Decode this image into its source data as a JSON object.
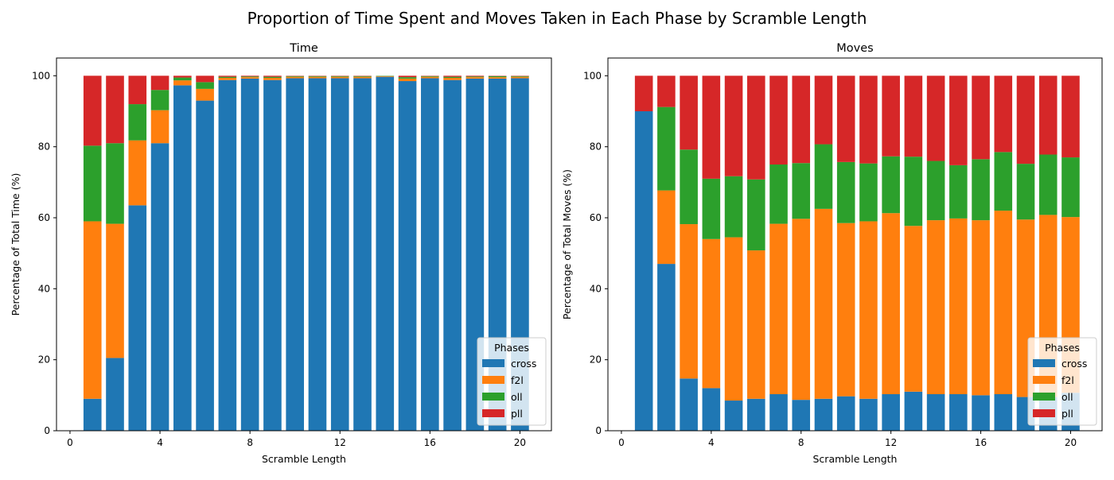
{
  "figure": {
    "title": "Proportion of Time Spent and Moves Taken in Each Phase by Scramble Length"
  },
  "colors": {
    "cross": "#1f77b4",
    "f2l": "#ff7f0e",
    "oll": "#2ca02c",
    "pll": "#d62728"
  },
  "chart_data": [
    {
      "type": "bar",
      "stacked": true,
      "title": "Time",
      "xlabel": "Scramble Length",
      "ylabel": "Percentage of Total Time (%)",
      "xlim": [
        -0.6,
        21.4
      ],
      "ylim": [
        0,
        105
      ],
      "xticks": [
        0,
        4,
        8,
        12,
        16,
        20
      ],
      "yticks": [
        0,
        20,
        40,
        60,
        80,
        100
      ],
      "grid": false,
      "legend": {
        "title": "Phases",
        "placement": "lower-right"
      },
      "x": [
        1,
        2,
        3,
        4,
        5,
        6,
        7,
        8,
        9,
        10,
        11,
        12,
        13,
        14,
        15,
        16,
        17,
        18,
        19,
        20
      ],
      "series": [
        {
          "name": "cross",
          "values": [
            9,
            20.5,
            63.5,
            81,
            97.3,
            93,
            98.8,
            99.2,
            98.8,
            99.3,
            99.3,
            99.3,
            99.3,
            99.7,
            98.5,
            99.3,
            98.8,
            99.2,
            99.2,
            99.3
          ]
        },
        {
          "name": "f2l",
          "values": [
            50,
            37.8,
            18.3,
            9.3,
            1.4,
            3.3,
            0.6,
            0.4,
            0.6,
            0.4,
            0.4,
            0.4,
            0.4,
            0.2,
            0.7,
            0.4,
            0.6,
            0.4,
            0.4,
            0.4
          ]
        },
        {
          "name": "oll",
          "values": [
            21.3,
            22.7,
            10.2,
            5.7,
            0.8,
            1.9,
            0.3,
            0.2,
            0.3,
            0.2,
            0.2,
            0.2,
            0.2,
            0.1,
            0.4,
            0.2,
            0.3,
            0.2,
            0.3,
            0.2
          ]
        },
        {
          "name": "pll",
          "values": [
            19.7,
            19,
            8,
            4,
            0.5,
            1.8,
            0.3,
            0.2,
            0.3,
            0.1,
            0.1,
            0.1,
            0.1,
            0,
            0.4,
            0.1,
            0.3,
            0.2,
            0.1,
            0.1
          ]
        }
      ]
    },
    {
      "type": "bar",
      "stacked": true,
      "title": "Moves",
      "xlabel": "Scramble Length",
      "ylabel": "Percentage of Total Moves (%)",
      "xlim": [
        -0.6,
        21.4
      ],
      "ylim": [
        0,
        105
      ],
      "xticks": [
        0,
        4,
        8,
        12,
        16,
        20
      ],
      "yticks": [
        0,
        20,
        40,
        60,
        80,
        100
      ],
      "grid": false,
      "legend": {
        "title": "Phases",
        "placement": "lower-right"
      },
      "x": [
        1,
        2,
        3,
        4,
        5,
        6,
        7,
        8,
        9,
        10,
        11,
        12,
        13,
        14,
        15,
        16,
        17,
        18,
        19,
        20
      ],
      "series": [
        {
          "name": "cross",
          "values": [
            90,
            47,
            14.7,
            12,
            8.5,
            9,
            10.3,
            8.7,
            9,
            9.7,
            9,
            10.3,
            11,
            10.3,
            10.3,
            10,
            10.3,
            9.5,
            9.5,
            10.7
          ]
        },
        {
          "name": "f2l",
          "values": [
            0,
            20.7,
            43.5,
            42,
            46,
            41.8,
            48,
            51,
            53.5,
            48.8,
            50,
            51,
            46.7,
            49,
            49.5,
            49.3,
            51.7,
            50,
            51.3,
            49.5
          ]
        },
        {
          "name": "oll",
          "values": [
            0,
            23.5,
            21,
            17,
            17.2,
            20,
            16.7,
            15.7,
            18.2,
            17.2,
            16.3,
            16,
            19.5,
            16.7,
            15,
            17.2,
            16.5,
            15.7,
            17,
            16.8
          ]
        },
        {
          "name": "pll",
          "values": [
            10,
            8.8,
            20.8,
            29,
            28.3,
            29.2,
            25,
            24.6,
            19.3,
            24.3,
            24.7,
            22.7,
            22.8,
            24,
            25.2,
            23.5,
            21.5,
            24.8,
            22.2,
            23
          ]
        }
      ]
    }
  ]
}
